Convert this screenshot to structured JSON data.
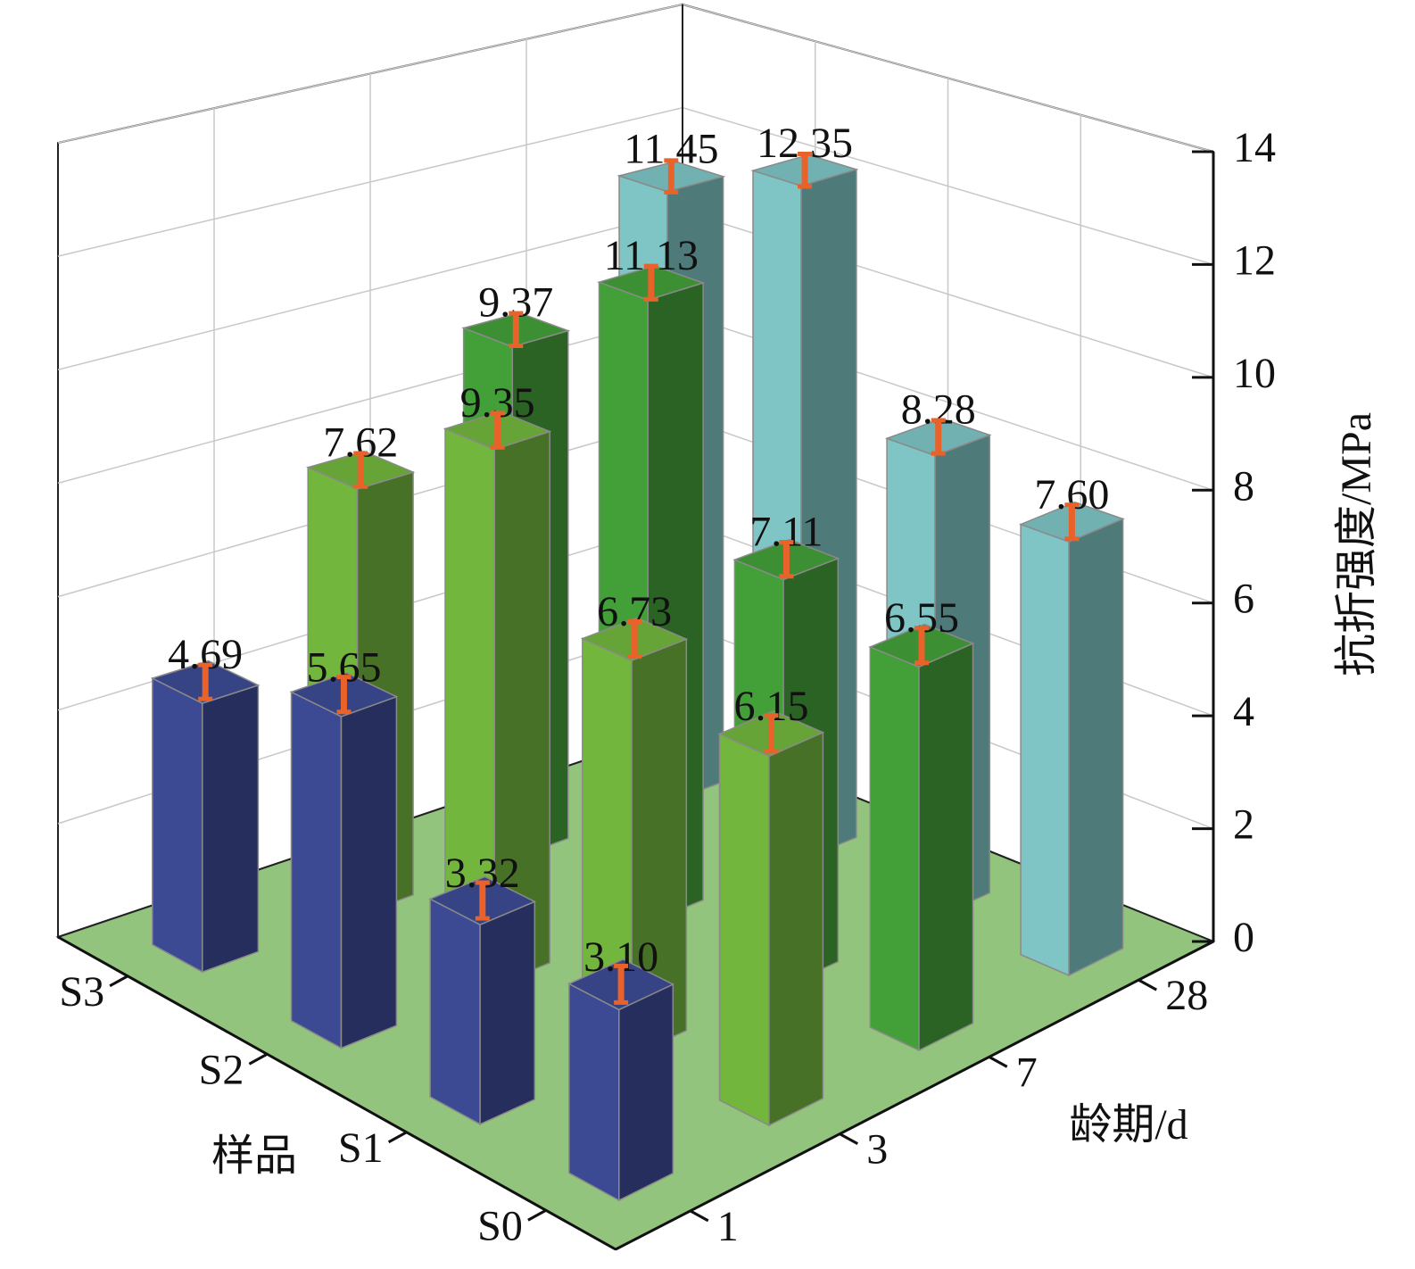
{
  "chart_data": {
    "type": "bar3d",
    "x_label": "样品",
    "x_categories": [
      "S0",
      "S1",
      "S2",
      "S3"
    ],
    "y_label": "龄期/d",
    "y_categories": [
      "1",
      "3",
      "7",
      "28"
    ],
    "z_label": "抗折强度/MPa",
    "zlim": [
      0,
      14
    ],
    "zticks": [
      0,
      2,
      4,
      6,
      8,
      10,
      12,
      14
    ],
    "grid": true,
    "series": [
      {
        "color": "#3c4a94",
        "values": [
          3.1,
          3.32,
          5.65,
          4.69
        ],
        "value_labels": [
          "3.10",
          "3.32",
          "5.65",
          "4.69"
        ],
        "errors": [
          0.3,
          0.3,
          0.3,
          0.3
        ]
      },
      {
        "color": "#72b63e",
        "values": [
          6.15,
          6.73,
          9.35,
          7.62
        ],
        "value_labels": [
          "6.15",
          "6.73",
          "9.35",
          "7.62"
        ],
        "errors": [
          0.3,
          0.3,
          0.3,
          0.3
        ]
      },
      {
        "color": "#43a039",
        "values": [
          6.55,
          7.11,
          11.13,
          9.37
        ],
        "value_labels": [
          "6.55",
          "7.11",
          "11.13",
          "9.37"
        ],
        "errors": [
          0.3,
          0.3,
          0.3,
          0.3
        ]
      },
      {
        "color": "#7fc5c5",
        "values": [
          7.6,
          8.28,
          12.35,
          11.45
        ],
        "value_labels": [
          "7.60",
          "8.28",
          "12.35",
          "11.45"
        ],
        "errors": [
          0.3,
          0.3,
          0.3,
          0.3
        ]
      }
    ]
  }
}
